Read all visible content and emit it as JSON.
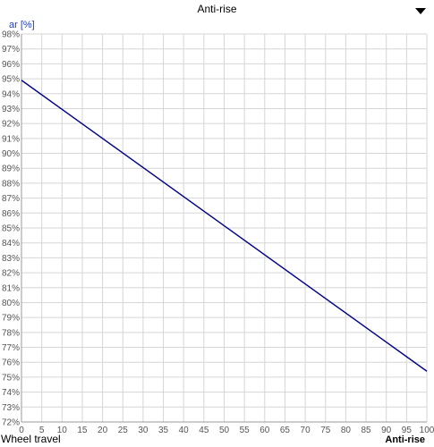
{
  "header": {
    "title": "Anti-rise",
    "dropdown_icon": "chevron-down-icon"
  },
  "chart_data": {
    "type": "line",
    "title": "Anti-rise",
    "ylabel": "ar [%]",
    "xlabel": "Wheel travel",
    "corner_label": "Anti-rise",
    "xlim": [
      0,
      100
    ],
    "ylim": [
      72,
      98
    ],
    "x_ticks": [
      0,
      5,
      10,
      15,
      20,
      25,
      30,
      35,
      40,
      45,
      50,
      55,
      60,
      65,
      70,
      75,
      80,
      85,
      90,
      95,
      100
    ],
    "y_ticks": [
      72,
      73,
      74,
      75,
      76,
      77,
      78,
      79,
      80,
      81,
      82,
      83,
      84,
      85,
      86,
      87,
      88,
      89,
      90,
      91,
      92,
      93,
      94,
      95,
      96,
      97,
      98
    ],
    "y_tick_suffix": "%",
    "grid": true,
    "series": [
      {
        "color": "#00008b",
        "x": [
          0,
          100
        ],
        "y": [
          94.9,
          75.4
        ]
      }
    ]
  }
}
